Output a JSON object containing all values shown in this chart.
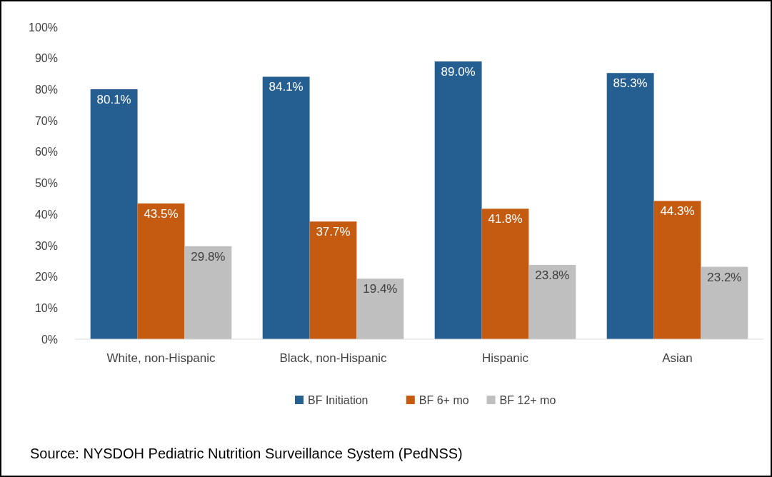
{
  "chart_data": {
    "type": "bar",
    "categories": [
      "White, non-Hispanic",
      "Black, non-Hispanic",
      "Hispanic",
      "Asian"
    ],
    "series": [
      {
        "name": "BF Initiation",
        "color": "#255e91",
        "values": [
          80.1,
          84.1,
          89.0,
          85.3
        ],
        "value_labels": [
          "80.1%",
          "84.1%",
          "89.0%",
          "85.3%"
        ]
      },
      {
        "name": "BF 6+ mo",
        "color": "#c55a11",
        "values": [
          43.5,
          37.7,
          41.8,
          44.3
        ],
        "value_labels": [
          "43.5%",
          "37.7%",
          "41.8%",
          "44.3%"
        ]
      },
      {
        "name": "BF 12+ mo",
        "color": "#bfbfbf",
        "values": [
          29.8,
          19.4,
          23.8,
          23.2
        ],
        "value_labels": [
          "29.8%",
          "19.4%",
          "23.8%",
          "23.2%"
        ]
      }
    ],
    "ylim": [
      0,
      100
    ],
    "yticks": [
      {
        "value": 0,
        "label": "0%"
      },
      {
        "value": 10,
        "label": "10%"
      },
      {
        "value": 20,
        "label": "20%"
      },
      {
        "value": 30,
        "label": "30%"
      },
      {
        "value": 40,
        "label": "40%"
      },
      {
        "value": 50,
        "label": "50%"
      },
      {
        "value": 60,
        "label": "60%"
      },
      {
        "value": 70,
        "label": "70%"
      },
      {
        "value": 80,
        "label": "80%"
      },
      {
        "value": 90,
        "label": "90%"
      },
      {
        "value": 100,
        "label": "100%"
      }
    ],
    "grid": false,
    "legend": "bottom",
    "annotations": [
      "Source:  NYSDOH Pediatric Nutrition Surveillance System (PedNSS)"
    ]
  }
}
